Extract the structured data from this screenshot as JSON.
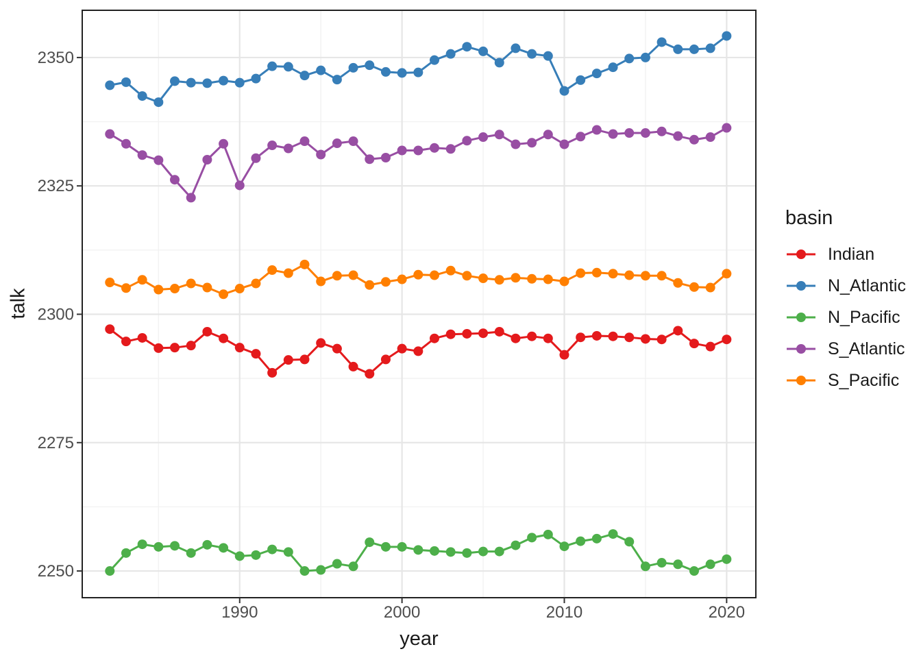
{
  "chart_data": {
    "type": "line",
    "title": "",
    "xlabel": "year",
    "ylabel": "talk",
    "legend": {
      "title": "basin",
      "position": "right"
    },
    "x": [
      1982,
      1983,
      1984,
      1985,
      1986,
      1987,
      1988,
      1989,
      1990,
      1991,
      1992,
      1993,
      1994,
      1995,
      1996,
      1997,
      1998,
      1999,
      2000,
      2001,
      2002,
      2003,
      2004,
      2005,
      2006,
      2007,
      2008,
      2009,
      2010,
      2011,
      2012,
      2013,
      2014,
      2015,
      2016,
      2017,
      2018,
      2019,
      2020
    ],
    "series": [
      {
        "name": "Indian",
        "color": "#E41A1C",
        "values": [
          2297.1,
          2294.7,
          2295.4,
          2293.4,
          2293.5,
          2293.9,
          2296.6,
          2295.3,
          2293.5,
          2292.3,
          2288.6,
          2291.1,
          2291.2,
          2294.4,
          2293.3,
          2289.8,
          2288.4,
          2291.2,
          2293.3,
          2292.8,
          2295.3,
          2296.1,
          2296.2,
          2296.3,
          2296.6,
          2295.3,
          2295.7,
          2295.3,
          2292.1,
          2295.5,
          2295.8,
          2295.7,
          2295.5,
          2295.2,
          2295.1,
          2296.8,
          2294.3,
          2293.7,
          2295.1
        ]
      },
      {
        "name": "N_Atlantic",
        "color": "#377EB8",
        "values": [
          2344.6,
          2345.2,
          2342.5,
          2341.3,
          2345.4,
          2345.1,
          2345.0,
          2345.5,
          2345.1,
          2345.9,
          2348.3,
          2348.2,
          2346.5,
          2347.5,
          2345.7,
          2348.0,
          2348.5,
          2347.2,
          2347.0,
          2347.1,
          2349.5,
          2350.7,
          2352.1,
          2351.2,
          2349.0,
          2351.8,
          2350.7,
          2350.3,
          2343.5,
          2345.6,
          2346.9,
          2348.1,
          2349.8,
          2350.0,
          2353.0,
          2351.6,
          2351.6,
          2351.8,
          2354.2
        ]
      },
      {
        "name": "N_Pacific",
        "color": "#4DAF4A",
        "values": [
          2250.0,
          2253.5,
          2255.2,
          2254.7,
          2254.9,
          2253.5,
          2255.1,
          2254.5,
          2252.9,
          2253.1,
          2254.2,
          2253.7,
          2250.0,
          2250.2,
          2251.4,
          2250.9,
          2255.6,
          2254.7,
          2254.7,
          2254.1,
          2253.9,
          2253.7,
          2253.5,
          2253.8,
          2253.8,
          2255.0,
          2256.5,
          2257.1,
          2254.8,
          2255.8,
          2256.3,
          2257.2,
          2255.7,
          2250.9,
          2251.6,
          2251.3,
          2250.0,
          2251.3,
          2252.3
        ]
      },
      {
        "name": "S_Atlantic",
        "color": "#984EA3",
        "values": [
          2335.1,
          2333.2,
          2331.0,
          2330.0,
          2326.2,
          2322.7,
          2330.1,
          2333.2,
          2325.1,
          2330.4,
          2332.9,
          2332.3,
          2333.7,
          2331.1,
          2333.3,
          2333.7,
          2330.2,
          2330.5,
          2331.9,
          2331.9,
          2332.4,
          2332.2,
          2333.8,
          2334.5,
          2335.0,
          2333.1,
          2333.4,
          2335.0,
          2333.1,
          2334.6,
          2335.9,
          2335.1,
          2335.3,
          2335.3,
          2335.6,
          2334.7,
          2334.0,
          2334.5,
          2336.3
        ]
      },
      {
        "name": "S_Pacific",
        "color": "#FF7F00",
        "values": [
          2306.2,
          2305.1,
          2306.7,
          2304.8,
          2305.0,
          2306.0,
          2305.2,
          2303.9,
          2305.0,
          2306.0,
          2308.6,
          2308.0,
          2309.7,
          2306.4,
          2307.5,
          2307.6,
          2305.7,
          2306.3,
          2306.8,
          2307.7,
          2307.6,
          2308.5,
          2307.5,
          2307.0,
          2306.7,
          2307.1,
          2306.9,
          2306.8,
          2306.4,
          2308.0,
          2308.1,
          2307.9,
          2307.6,
          2307.5,
          2307.5,
          2306.1,
          2305.3,
          2305.2,
          2307.9
        ]
      }
    ],
    "axes": {
      "x_ticks": [
        1990,
        2000,
        2010,
        2020
      ],
      "x_minor_ticks": [
        1985,
        1995,
        2005,
        2015
      ],
      "y_ticks": [
        2250,
        2275,
        2300,
        2325,
        2350
      ],
      "y_minor_ticks": [
        2262.5,
        2287.5,
        2312.5,
        2337.5
      ],
      "x_domain": [
        1980.3,
        2021.8
      ],
      "y_domain": [
        2244.8,
        2359.2
      ],
      "grid": true
    },
    "style": {
      "background": "#FFFFFF",
      "panel_background": "#FFFFFF",
      "panel_border": "#222222",
      "grid_major": "#E6E6E6",
      "grid_minor": "#F2F2F2",
      "tick_color": "#333333",
      "tick_label_color": "#4D4D4D",
      "axis_title_color": "#1A1A1A",
      "point_radius": 7,
      "line_width": 3
    }
  }
}
